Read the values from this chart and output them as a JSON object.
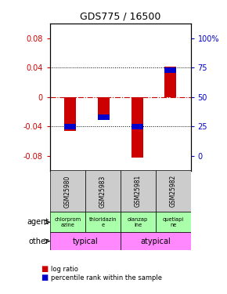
{
  "title": "GDS775 / 16500",
  "samples": [
    "GSM25980",
    "GSM25983",
    "GSM25981",
    "GSM25982"
  ],
  "log_ratios": [
    -0.046,
    -0.028,
    -0.082,
    0.041
  ],
  "percentile_ranks": [
    25,
    33,
    25,
    73
  ],
  "agents": [
    "chlorprom\nazine",
    "thioridazin\ne",
    "olanzap\nine",
    "quetiapi\nne"
  ],
  "agent_bg": "#aaffaa",
  "other_color": "#ff88ff",
  "bar_color_red": "#cc0000",
  "bar_color_blue": "#0000cc",
  "ylim": [
    -0.1,
    0.1
  ],
  "yticks_left": [
    -0.08,
    -0.04,
    0.0,
    0.04,
    0.08
  ],
  "yticks_right_vals": [
    0,
    25,
    50,
    75,
    100
  ],
  "ylabel_left_color": "#cc0000",
  "ylabel_right_color": "#0000cc",
  "hline_color": "#cc0000",
  "dotted_color": "#000000",
  "agent_row_label": "agent",
  "other_row_label": "other",
  "legend_red": "log ratio",
  "legend_blue": "percentile rank within the sample",
  "bar_width": 0.35,
  "gray_color": "#cccccc"
}
